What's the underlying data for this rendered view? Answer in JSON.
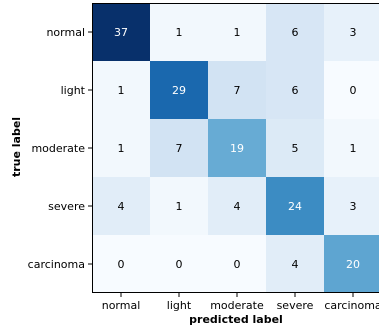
{
  "chart_data": {
    "type": "heatmap",
    "title": "",
    "xlabel": "predicted label",
    "ylabel": "true label",
    "row_labels": [
      "normal",
      "light",
      "moderate",
      "severe",
      "carcinoma"
    ],
    "col_labels": [
      "normal",
      "light",
      "moderate",
      "severe",
      "carcinoma"
    ],
    "values": [
      [
        37,
        1,
        1,
        6,
        3
      ],
      [
        1,
        29,
        7,
        6,
        0
      ],
      [
        1,
        7,
        19,
        5,
        1
      ],
      [
        4,
        1,
        4,
        24,
        3
      ],
      [
        0,
        0,
        0,
        4,
        20
      ]
    ],
    "colormap": "Blues",
    "value_range": [
      0,
      37
    ],
    "grid": false
  }
}
